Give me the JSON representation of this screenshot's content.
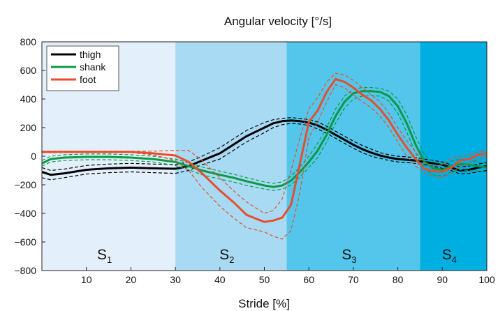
{
  "chart_data": {
    "type": "line",
    "title": "Angular velocity [°/s]",
    "xlabel": "Stride [%]",
    "ylabel": "",
    "xlim": [
      0,
      100
    ],
    "ylim": [
      -800,
      800
    ],
    "x_ticks": [
      10,
      20,
      30,
      40,
      50,
      60,
      70,
      80,
      90,
      100
    ],
    "y_ticks": [
      800,
      600,
      400,
      200,
      0,
      -200,
      -400,
      -600,
      -800
    ],
    "grid": false,
    "legend_position": "top-left",
    "phases": [
      {
        "label": "S",
        "sub": "1",
        "start": 0,
        "end": 30,
        "color": "#e3effb"
      },
      {
        "label": "S",
        "sub": "2",
        "start": 30,
        "end": 55,
        "color": "#a9daf3"
      },
      {
        "label": "S",
        "sub": "3",
        "start": 55,
        "end": 85,
        "color": "#55c6eb"
      },
      {
        "label": "S",
        "sub": "4",
        "start": 85,
        "end": 100,
        "color": "#00afe1"
      }
    ],
    "x": [
      0,
      2,
      5,
      10,
      15,
      20,
      25,
      30,
      33,
      36,
      40,
      43,
      46,
      50,
      52,
      54,
      56,
      58,
      60,
      62,
      64,
      66,
      68,
      70,
      72,
      74,
      76,
      78,
      80,
      82,
      84,
      86,
      88,
      90,
      92,
      94,
      96,
      98,
      100
    ],
    "series": [
      {
        "name": "thigh",
        "color": "#000000",
        "mean": [
          -110,
          -130,
          -120,
          -95,
          -85,
          -80,
          -85,
          -88,
          -70,
          -30,
          20,
          80,
          140,
          200,
          230,
          245,
          250,
          245,
          235,
          215,
          185,
          150,
          115,
          80,
          50,
          25,
          5,
          -10,
          -20,
          -25,
          -30,
          -40,
          -50,
          -60,
          -80,
          -100,
          -95,
          -80,
          -70
        ],
        "upper": [
          -80,
          -100,
          -90,
          -65,
          -55,
          -50,
          -55,
          -58,
          -40,
          0,
          60,
          120,
          180,
          235,
          255,
          265,
          270,
          265,
          255,
          240,
          210,
          175,
          140,
          105,
          75,
          50,
          25,
          10,
          0,
          -5,
          -10,
          -20,
          -30,
          -40,
          -60,
          -75,
          -70,
          -55,
          -45
        ],
        "lower": [
          -150,
          -165,
          -150,
          -125,
          -115,
          -110,
          -115,
          -120,
          -100,
          -60,
          -20,
          40,
          100,
          165,
          200,
          220,
          230,
          225,
          215,
          190,
          160,
          125,
          90,
          55,
          25,
          0,
          -15,
          -30,
          -40,
          -45,
          -50,
          -60,
          -70,
          -85,
          -100,
          -125,
          -120,
          -110,
          -100
        ]
      },
      {
        "name": "shank",
        "color": "#0a9a45",
        "mean": [
          -50,
          -20,
          -10,
          -5,
          -5,
          -10,
          -20,
          -40,
          -70,
          -100,
          -130,
          -150,
          -175,
          -205,
          -215,
          -205,
          -170,
          -110,
          -40,
          40,
          150,
          280,
          380,
          440,
          455,
          455,
          450,
          420,
          350,
          230,
          80,
          -40,
          -85,
          -95,
          -70,
          -55,
          -60,
          -70,
          -80
        ],
        "upper": [
          -30,
          0,
          10,
          15,
          15,
          10,
          0,
          -20,
          -45,
          -75,
          -105,
          -125,
          -150,
          -180,
          -190,
          -180,
          -140,
          -75,
          0,
          90,
          200,
          330,
          420,
          470,
          480,
          480,
          475,
          455,
          400,
          290,
          140,
          10,
          -40,
          -55,
          -35,
          -20,
          -25,
          -40,
          -55
        ],
        "lower": [
          -70,
          -40,
          -30,
          -25,
          -25,
          -30,
          -40,
          -65,
          -95,
          -130,
          -160,
          -180,
          -205,
          -230,
          -240,
          -230,
          -200,
          -145,
          -80,
          -10,
          100,
          230,
          335,
          400,
          420,
          425,
          420,
          385,
          300,
          170,
          20,
          -90,
          -130,
          -140,
          -110,
          -95,
          -100,
          -105,
          -110
        ]
      },
      {
        "name": "foot",
        "color": "#e84e2b",
        "mean": [
          30,
          30,
          30,
          30,
          30,
          30,
          20,
          5,
          -40,
          -120,
          -240,
          -320,
          -410,
          -460,
          -450,
          -430,
          -340,
          -50,
          240,
          320,
          450,
          540,
          520,
          480,
          430,
          390,
          330,
          250,
          150,
          60,
          -20,
          -90,
          -105,
          -110,
          -80,
          -30,
          -20,
          10,
          20
        ],
        "upper": [
          35,
          35,
          35,
          35,
          35,
          35,
          35,
          40,
          40,
          -30,
          -150,
          -240,
          -320,
          -400,
          -380,
          -300,
          -100,
          130,
          330,
          410,
          520,
          580,
          570,
          530,
          480,
          430,
          380,
          300,
          200,
          110,
          30,
          -50,
          -70,
          -60,
          -10,
          0,
          10,
          30,
          40
        ],
        "lower": [
          25,
          25,
          25,
          25,
          25,
          25,
          10,
          -30,
          -100,
          -220,
          -350,
          -430,
          -500,
          -530,
          -560,
          -580,
          -520,
          -250,
          130,
          240,
          380,
          500,
          480,
          430,
          380,
          340,
          280,
          200,
          100,
          0,
          -70,
          -120,
          -140,
          -150,
          -120,
          -70,
          -50,
          -20,
          0
        ]
      }
    ]
  }
}
